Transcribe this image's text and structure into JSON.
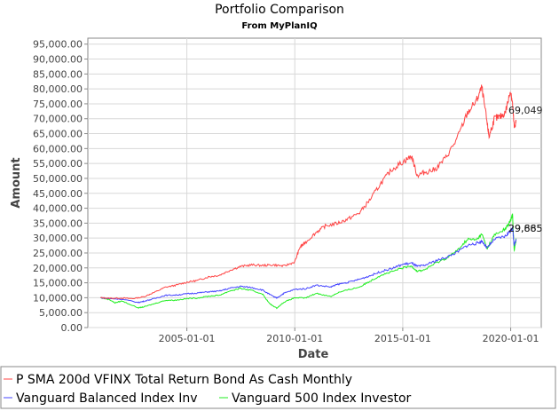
{
  "chart_data": {
    "type": "line",
    "title": "Portfolio Comparison",
    "subtitle": "From MyPlanIQ",
    "xlabel": "Date",
    "ylabel": "Amount",
    "xlim": [
      "2000-06-01",
      "2021-06-01"
    ],
    "ylim": [
      0,
      97000
    ],
    "xticks": [
      "2005-01-01",
      "2010-01-01",
      "2015-01-01",
      "2020-01-01"
    ],
    "yticks": [
      "0.00",
      "5,000.00",
      "10,000.00",
      "15,000.00",
      "20,000.00",
      "25,000.00",
      "30,000.00",
      "35,000.00",
      "40,000.00",
      "45,000.00",
      "50,000.00",
      "55,000.00",
      "60,000.00",
      "65,000.00",
      "70,000.00",
      "75,000.00",
      "80,000.00",
      "85,000.00",
      "90,000.00",
      "95,000.00"
    ],
    "grid": true,
    "legend_position": "bottom",
    "series": [
      {
        "name": "P SMA 200d VFINX Total Return Bond As Cash Monthly",
        "color": "#ff4444",
        "end_label": "69,049",
        "points": [
          [
            "2001-01-01",
            10000
          ],
          [
            "2001-06-01",
            9800
          ],
          [
            "2002-01-01",
            9900
          ],
          [
            "2002-07-01",
            9700
          ],
          [
            "2003-01-01",
            10300
          ],
          [
            "2003-07-01",
            11800
          ],
          [
            "2004-01-01",
            13500
          ],
          [
            "2004-07-01",
            14200
          ],
          [
            "2005-01-01",
            15200
          ],
          [
            "2005-07-01",
            15800
          ],
          [
            "2006-01-01",
            17000
          ],
          [
            "2006-07-01",
            17500
          ],
          [
            "2007-01-01",
            19200
          ],
          [
            "2007-07-01",
            20500
          ],
          [
            "2008-01-01",
            21000
          ],
          [
            "2008-07-01",
            20800
          ],
          [
            "2009-01-01",
            21000
          ],
          [
            "2009-07-01",
            20600
          ],
          [
            "2010-01-01",
            22000
          ],
          [
            "2010-04-01",
            27000
          ],
          [
            "2010-07-01",
            28500
          ],
          [
            "2011-01-01",
            32000
          ],
          [
            "2011-06-01",
            34000
          ],
          [
            "2012-01-01",
            35000
          ],
          [
            "2012-07-01",
            36500
          ],
          [
            "2013-01-01",
            38500
          ],
          [
            "2013-07-01",
            43000
          ],
          [
            "2014-01-01",
            48500
          ],
          [
            "2014-07-01",
            53000
          ],
          [
            "2015-01-01",
            55500
          ],
          [
            "2015-06-01",
            57500
          ],
          [
            "2015-09-01",
            51000
          ],
          [
            "2016-01-01",
            52000
          ],
          [
            "2016-07-01",
            53000
          ],
          [
            "2017-01-01",
            57000
          ],
          [
            "2017-07-01",
            63000
          ],
          [
            "2018-01-01",
            72000
          ],
          [
            "2018-06-01",
            76000
          ],
          [
            "2018-09-01",
            80500
          ],
          [
            "2018-12-01",
            68000
          ],
          [
            "2019-01-01",
            64000
          ],
          [
            "2019-04-01",
            70000
          ],
          [
            "2019-07-01",
            70500
          ],
          [
            "2019-10-01",
            72000
          ],
          [
            "2020-01-01",
            79500
          ],
          [
            "2020-02-01",
            75000
          ],
          [
            "2020-03-01",
            67000
          ],
          [
            "2020-04-01",
            69049
          ]
        ]
      },
      {
        "name": "Vanguard Balanced Index Inv",
        "color": "#4444ff",
        "end_label": "29,665",
        "points": [
          [
            "2001-01-01",
            10000
          ],
          [
            "2001-06-01",
            9700
          ],
          [
            "2002-01-01",
            9500
          ],
          [
            "2002-10-01",
            8400
          ],
          [
            "2003-01-01",
            8800
          ],
          [
            "2003-07-01",
            9700
          ],
          [
            "2004-01-01",
            10800
          ],
          [
            "2004-07-01",
            10900
          ],
          [
            "2005-01-01",
            11300
          ],
          [
            "2005-07-01",
            11600
          ],
          [
            "2006-01-01",
            12000
          ],
          [
            "2006-07-01",
            12200
          ],
          [
            "2007-01-01",
            13200
          ],
          [
            "2007-07-01",
            13800
          ],
          [
            "2008-01-01",
            13400
          ],
          [
            "2008-07-01",
            12600
          ],
          [
            "2009-01-01",
            10400
          ],
          [
            "2009-03-01",
            9900
          ],
          [
            "2009-07-01",
            11500
          ],
          [
            "2010-01-01",
            12800
          ],
          [
            "2010-07-01",
            13000
          ],
          [
            "2011-01-01",
            14200
          ],
          [
            "2011-09-01",
            13600
          ],
          [
            "2012-01-01",
            14500
          ],
          [
            "2012-07-01",
            15200
          ],
          [
            "2013-01-01",
            16200
          ],
          [
            "2013-07-01",
            17400
          ],
          [
            "2014-01-01",
            18800
          ],
          [
            "2014-07-01",
            19800
          ],
          [
            "2015-01-01",
            21200
          ],
          [
            "2015-06-01",
            21600
          ],
          [
            "2015-09-01",
            20500
          ],
          [
            "2016-01-01",
            20800
          ],
          [
            "2016-07-01",
            22300
          ],
          [
            "2017-01-01",
            23500
          ],
          [
            "2017-07-01",
            25200
          ],
          [
            "2018-01-01",
            27600
          ],
          [
            "2018-06-01",
            28200
          ],
          [
            "2018-09-01",
            29000
          ],
          [
            "2018-12-01",
            26600
          ],
          [
            "2019-04-01",
            29600
          ],
          [
            "2019-10-01",
            30600
          ],
          [
            "2020-01-01",
            32500
          ],
          [
            "2020-02-01",
            33500
          ],
          [
            "2020-03-01",
            27500
          ],
          [
            "2020-04-01",
            29665
          ]
        ]
      },
      {
        "name": "Vanguard 500 Index Investor",
        "color": "#22ee22",
        "end_label": "29,885",
        "points": [
          [
            "2001-01-01",
            10000
          ],
          [
            "2001-06-01",
            9400
          ],
          [
            "2001-09-01",
            8300
          ],
          [
            "2002-01-01",
            8900
          ],
          [
            "2002-10-01",
            6600
          ],
          [
            "2003-01-01",
            6900
          ],
          [
            "2003-07-01",
            8000
          ],
          [
            "2004-01-01",
            9100
          ],
          [
            "2004-07-01",
            9200
          ],
          [
            "2005-01-01",
            9700
          ],
          [
            "2005-07-01",
            9900
          ],
          [
            "2006-01-01",
            10500
          ],
          [
            "2006-07-01",
            10800
          ],
          [
            "2007-01-01",
            12300
          ],
          [
            "2007-07-01",
            13100
          ],
          [
            "2008-01-01",
            12400
          ],
          [
            "2008-07-01",
            11300
          ],
          [
            "2008-11-01",
            8000
          ],
          [
            "2009-03-01",
            6500
          ],
          [
            "2009-07-01",
            8500
          ],
          [
            "2010-01-01",
            10000
          ],
          [
            "2010-07-01",
            9900
          ],
          [
            "2011-01-01",
            11500
          ],
          [
            "2011-09-01",
            10400
          ],
          [
            "2012-01-01",
            11700
          ],
          [
            "2012-07-01",
            12700
          ],
          [
            "2013-01-01",
            13600
          ],
          [
            "2013-07-01",
            15600
          ],
          [
            "2014-01-01",
            17600
          ],
          [
            "2014-07-01",
            18700
          ],
          [
            "2015-01-01",
            20000
          ],
          [
            "2015-06-01",
            20600
          ],
          [
            "2015-09-01",
            18900
          ],
          [
            "2016-01-01",
            19300
          ],
          [
            "2016-07-01",
            21500
          ],
          [
            "2017-01-01",
            23200
          ],
          [
            "2017-07-01",
            25600
          ],
          [
            "2018-01-01",
            29600
          ],
          [
            "2018-06-01",
            29400
          ],
          [
            "2018-09-01",
            31300
          ],
          [
            "2018-12-01",
            26500
          ],
          [
            "2019-04-01",
            31000
          ],
          [
            "2019-10-01",
            33000
          ],
          [
            "2020-01-01",
            35800
          ],
          [
            "2020-02-01",
            38000
          ],
          [
            "2020-03-01",
            25500
          ],
          [
            "2020-04-01",
            29885
          ]
        ]
      }
    ]
  }
}
